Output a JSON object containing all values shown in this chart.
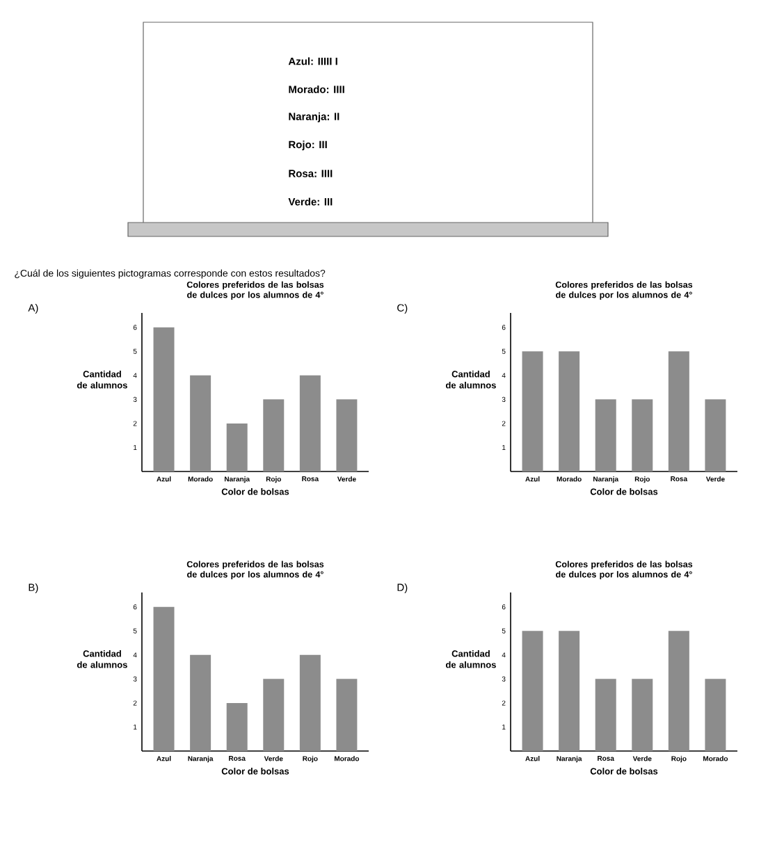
{
  "chart_data": [
    {
      "type": "other",
      "annotations": [
        "Azul: IIIII I",
        "Morado: IIII",
        "Naranja: II",
        "Rojo:  III",
        "Rosa: IIII",
        "Verde: III",
        "¿Cuál de los siguientes pictogramas corresponde con estos resultados?"
      ]
    },
    {
      "type": "bar",
      "title": "Colores preferidos de las bolsas de dulces por los alumnos de 4°",
      "xlabel": "Color de bolsas",
      "ylabel": "Cantidad de alumnos",
      "annotations": [
        "A)"
      ],
      "categories": [
        "Azul",
        "Morado",
        "Naranja",
        "Rojo",
        "Rosa",
        "Verde"
      ],
      "values": [
        6,
        4,
        2,
        3,
        4,
        3
      ],
      "color": "#8c8c8c",
      "ylim": [
        0,
        6.6
      ],
      "yticks": [
        1,
        2,
        3,
        4,
        5,
        6
      ]
    },
    {
      "type": "bar",
      "title": "Colores preferidos de las bolsas de dulces por los alumnos de 4°",
      "xlabel": "Color de bolsas",
      "ylabel": "Cantidad de alumnos",
      "annotations": [
        "C)"
      ],
      "categories": [
        "Azul",
        "Morado",
        "Naranja",
        "Rojo",
        "Rosa",
        "Verde"
      ],
      "values": [
        5,
        5,
        3,
        3,
        5,
        3
      ],
      "color": "#8c8c8c",
      "ylim": [
        0,
        6.6
      ],
      "yticks": [
        1,
        2,
        3,
        4,
        5,
        6
      ]
    },
    {
      "type": "bar",
      "title": "Colores preferidos de las bolsas de dulces por los alumnos de 4°",
      "xlabel": "Color de bolsas",
      "ylabel": "Cantidad de alumnos",
      "annotations": [
        "B)"
      ],
      "categories": [
        "Azul",
        "Naranja",
        "Rosa",
        "Verde",
        "Rojo",
        "Morado"
      ],
      "values": [
        6,
        4,
        2,
        3,
        4,
        3
      ],
      "color": "#8c8c8c",
      "ylim": [
        0,
        6.6
      ],
      "yticks": [
        1,
        2,
        3,
        4,
        5,
        6
      ]
    },
    {
      "type": "bar",
      "title": "Colores preferidos de las bolsas de dulces por los alumnos de 4°",
      "xlabel": "Color de bolsas",
      "ylabel": "Cantidad de alumnos",
      "annotations": [
        "D)"
      ],
      "categories": [
        "Azul",
        "Naranja",
        "Rosa",
        "Verde",
        "Rojo",
        "Morado"
      ],
      "values": [
        5,
        5,
        3,
        3,
        5,
        3
      ],
      "color": "#8c8c8c",
      "ylim": [
        0,
        6.6
      ],
      "yticks": [
        1,
        2,
        3,
        4,
        5,
        6
      ]
    }
  ]
}
